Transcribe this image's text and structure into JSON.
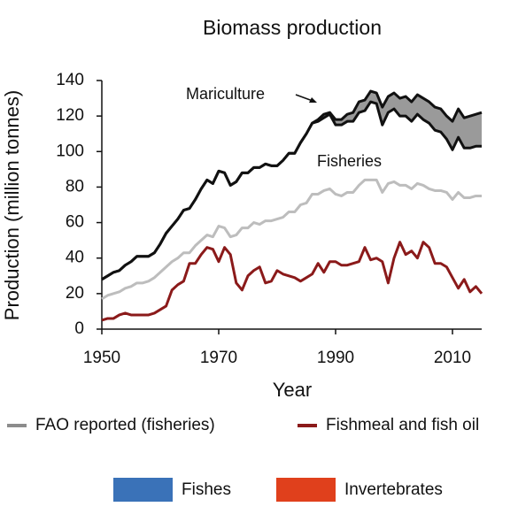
{
  "chart_data": {
    "type": "line",
    "title": "Biomass production",
    "x_label": "Year",
    "y_label": "Production (million tonnes)",
    "xlim": [
      1950,
      2015
    ],
    "ylim": [
      0,
      140
    ],
    "xticks": [
      1950,
      1970,
      1990,
      2010
    ],
    "yticks": [
      0,
      20,
      40,
      60,
      80,
      100,
      120,
      140
    ],
    "grid": false,
    "band_between": [
      0,
      1
    ],
    "band_color": "#9a9a9a",
    "annotations": [
      {
        "text": "Mariculture"
      },
      {
        "text": "Fisheries"
      }
    ],
    "x": [
      1950,
      1951,
      1952,
      1953,
      1954,
      1955,
      1956,
      1957,
      1958,
      1959,
      1960,
      1961,
      1962,
      1963,
      1964,
      1965,
      1966,
      1967,
      1968,
      1969,
      1970,
      1971,
      1972,
      1973,
      1974,
      1975,
      1976,
      1977,
      1978,
      1979,
      1980,
      1981,
      1982,
      1983,
      1984,
      1985,
      1986,
      1987,
      1988,
      1989,
      1990,
      1991,
      1992,
      1993,
      1994,
      1995,
      1996,
      1997,
      1998,
      1999,
      2000,
      2001,
      2002,
      2003,
      2004,
      2005,
      2006,
      2007,
      2008,
      2009,
      2010,
      2011,
      2012,
      2013,
      2014,
      2015
    ],
    "series": [
      {
        "color": "#111111",
        "width": 3,
        "legend": false,
        "values": [
          28,
          30,
          32,
          33,
          36,
          38,
          41,
          41,
          41,
          43,
          48,
          54,
          58,
          62,
          67,
          68,
          73,
          79,
          84,
          82,
          89,
          88,
          81,
          83,
          88,
          88,
          91,
          91,
          93,
          92,
          92,
          95,
          99,
          99,
          105,
          110,
          116,
          118,
          121,
          122,
          118,
          118,
          121,
          122,
          128,
          129,
          134,
          133,
          125,
          131,
          133,
          130,
          131,
          128,
          132,
          130,
          128,
          125,
          124,
          120,
          117,
          124,
          119,
          120,
          121,
          122
        ]
      },
      {
        "color": "#111111",
        "width": 3,
        "legend": false,
        "values": [
          28,
          30,
          32,
          33,
          36,
          38,
          41,
          41,
          41,
          43,
          48,
          54,
          58,
          62,
          67,
          68,
          73,
          79,
          84,
          82,
          89,
          88,
          81,
          83,
          88,
          88,
          91,
          91,
          93,
          92,
          92,
          95,
          99,
          99,
          105,
          110,
          116,
          117,
          119,
          121,
          115,
          115,
          117,
          117,
          122,
          123,
          128,
          127,
          115,
          122,
          124,
          120,
          120,
          117,
          121,
          118,
          116,
          112,
          111,
          107,
          101,
          108,
          102,
          102,
          103,
          103
        ]
      },
      {
        "name": "FAO reported (fisheries)",
        "color": "#bdbdbd",
        "legend_color": "#8c8c8c",
        "width": 3,
        "legend": true,
        "values": [
          17,
          19,
          20,
          21,
          23,
          24,
          26,
          26,
          27,
          29,
          32,
          35,
          38,
          40,
          43,
          43,
          47,
          50,
          53,
          52,
          58,
          57,
          52,
          53,
          57,
          57,
          60,
          59,
          61,
          61,
          62,
          63,
          66,
          66,
          70,
          71,
          76,
          76,
          78,
          79,
          76,
          75,
          77,
          77,
          81,
          84,
          84,
          84,
          77,
          82,
          83,
          81,
          81,
          79,
          82,
          81,
          79,
          78,
          78,
          77,
          73,
          77,
          74,
          74,
          75,
          75
        ]
      },
      {
        "name": "Fishmeal and fish oil",
        "color": "#8b1a1a",
        "width": 3,
        "legend": true,
        "values": [
          5,
          6,
          6,
          8,
          9,
          8,
          8,
          8,
          8,
          9,
          11,
          13,
          22,
          25,
          27,
          37,
          37,
          42,
          46,
          45,
          38,
          46,
          42,
          26,
          22,
          30,
          33,
          35,
          26,
          27,
          33,
          31,
          30,
          29,
          27,
          29,
          31,
          37,
          32,
          38,
          38,
          36,
          36,
          37,
          38,
          46,
          39,
          40,
          38,
          26,
          40,
          49,
          42,
          44,
          40,
          49,
          46,
          37,
          37,
          35,
          29,
          23,
          28,
          21,
          24,
          20
        ]
      }
    ],
    "legend_swatches": [
      {
        "name": "Fishes",
        "color": "#3a72b8"
      },
      {
        "name": "Invertebrates",
        "color": "#e0401c"
      }
    ]
  }
}
